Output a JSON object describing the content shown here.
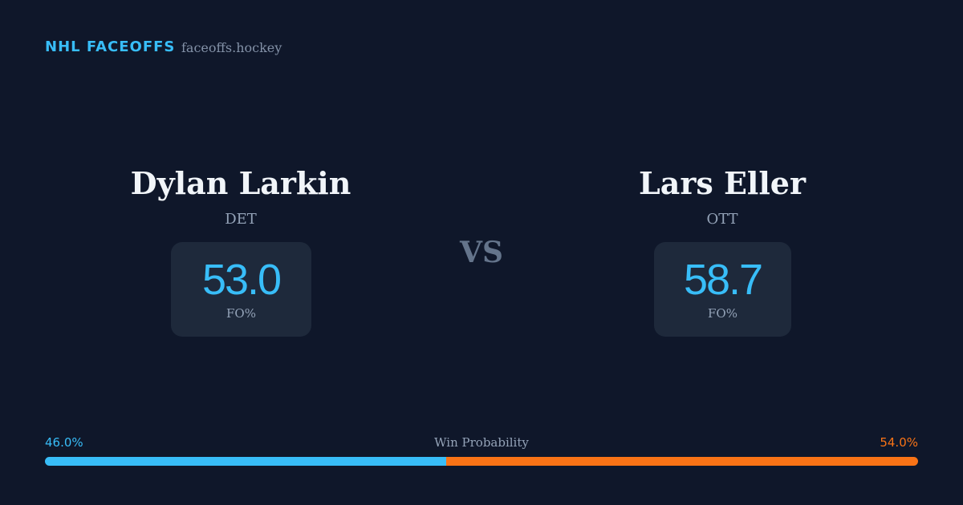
{
  "header": {
    "brand": "NHL FACEOFFS",
    "site": "faceoffs.hockey"
  },
  "players": [
    {
      "name": "Dylan Larkin",
      "team": "DET",
      "stat": "53.0",
      "stat_label": "FO%"
    },
    {
      "name": "Lars Eller",
      "team": "OTT",
      "stat": "58.7",
      "stat_label": "FO%"
    }
  ],
  "versus": "VS",
  "win_probability": {
    "label": "Win Probability",
    "left": {
      "value": 46.0,
      "label": "46.0%",
      "color": "#38bdf8"
    },
    "right": {
      "value": 54.0,
      "label": "54.0%",
      "color": "#f97316"
    }
  }
}
